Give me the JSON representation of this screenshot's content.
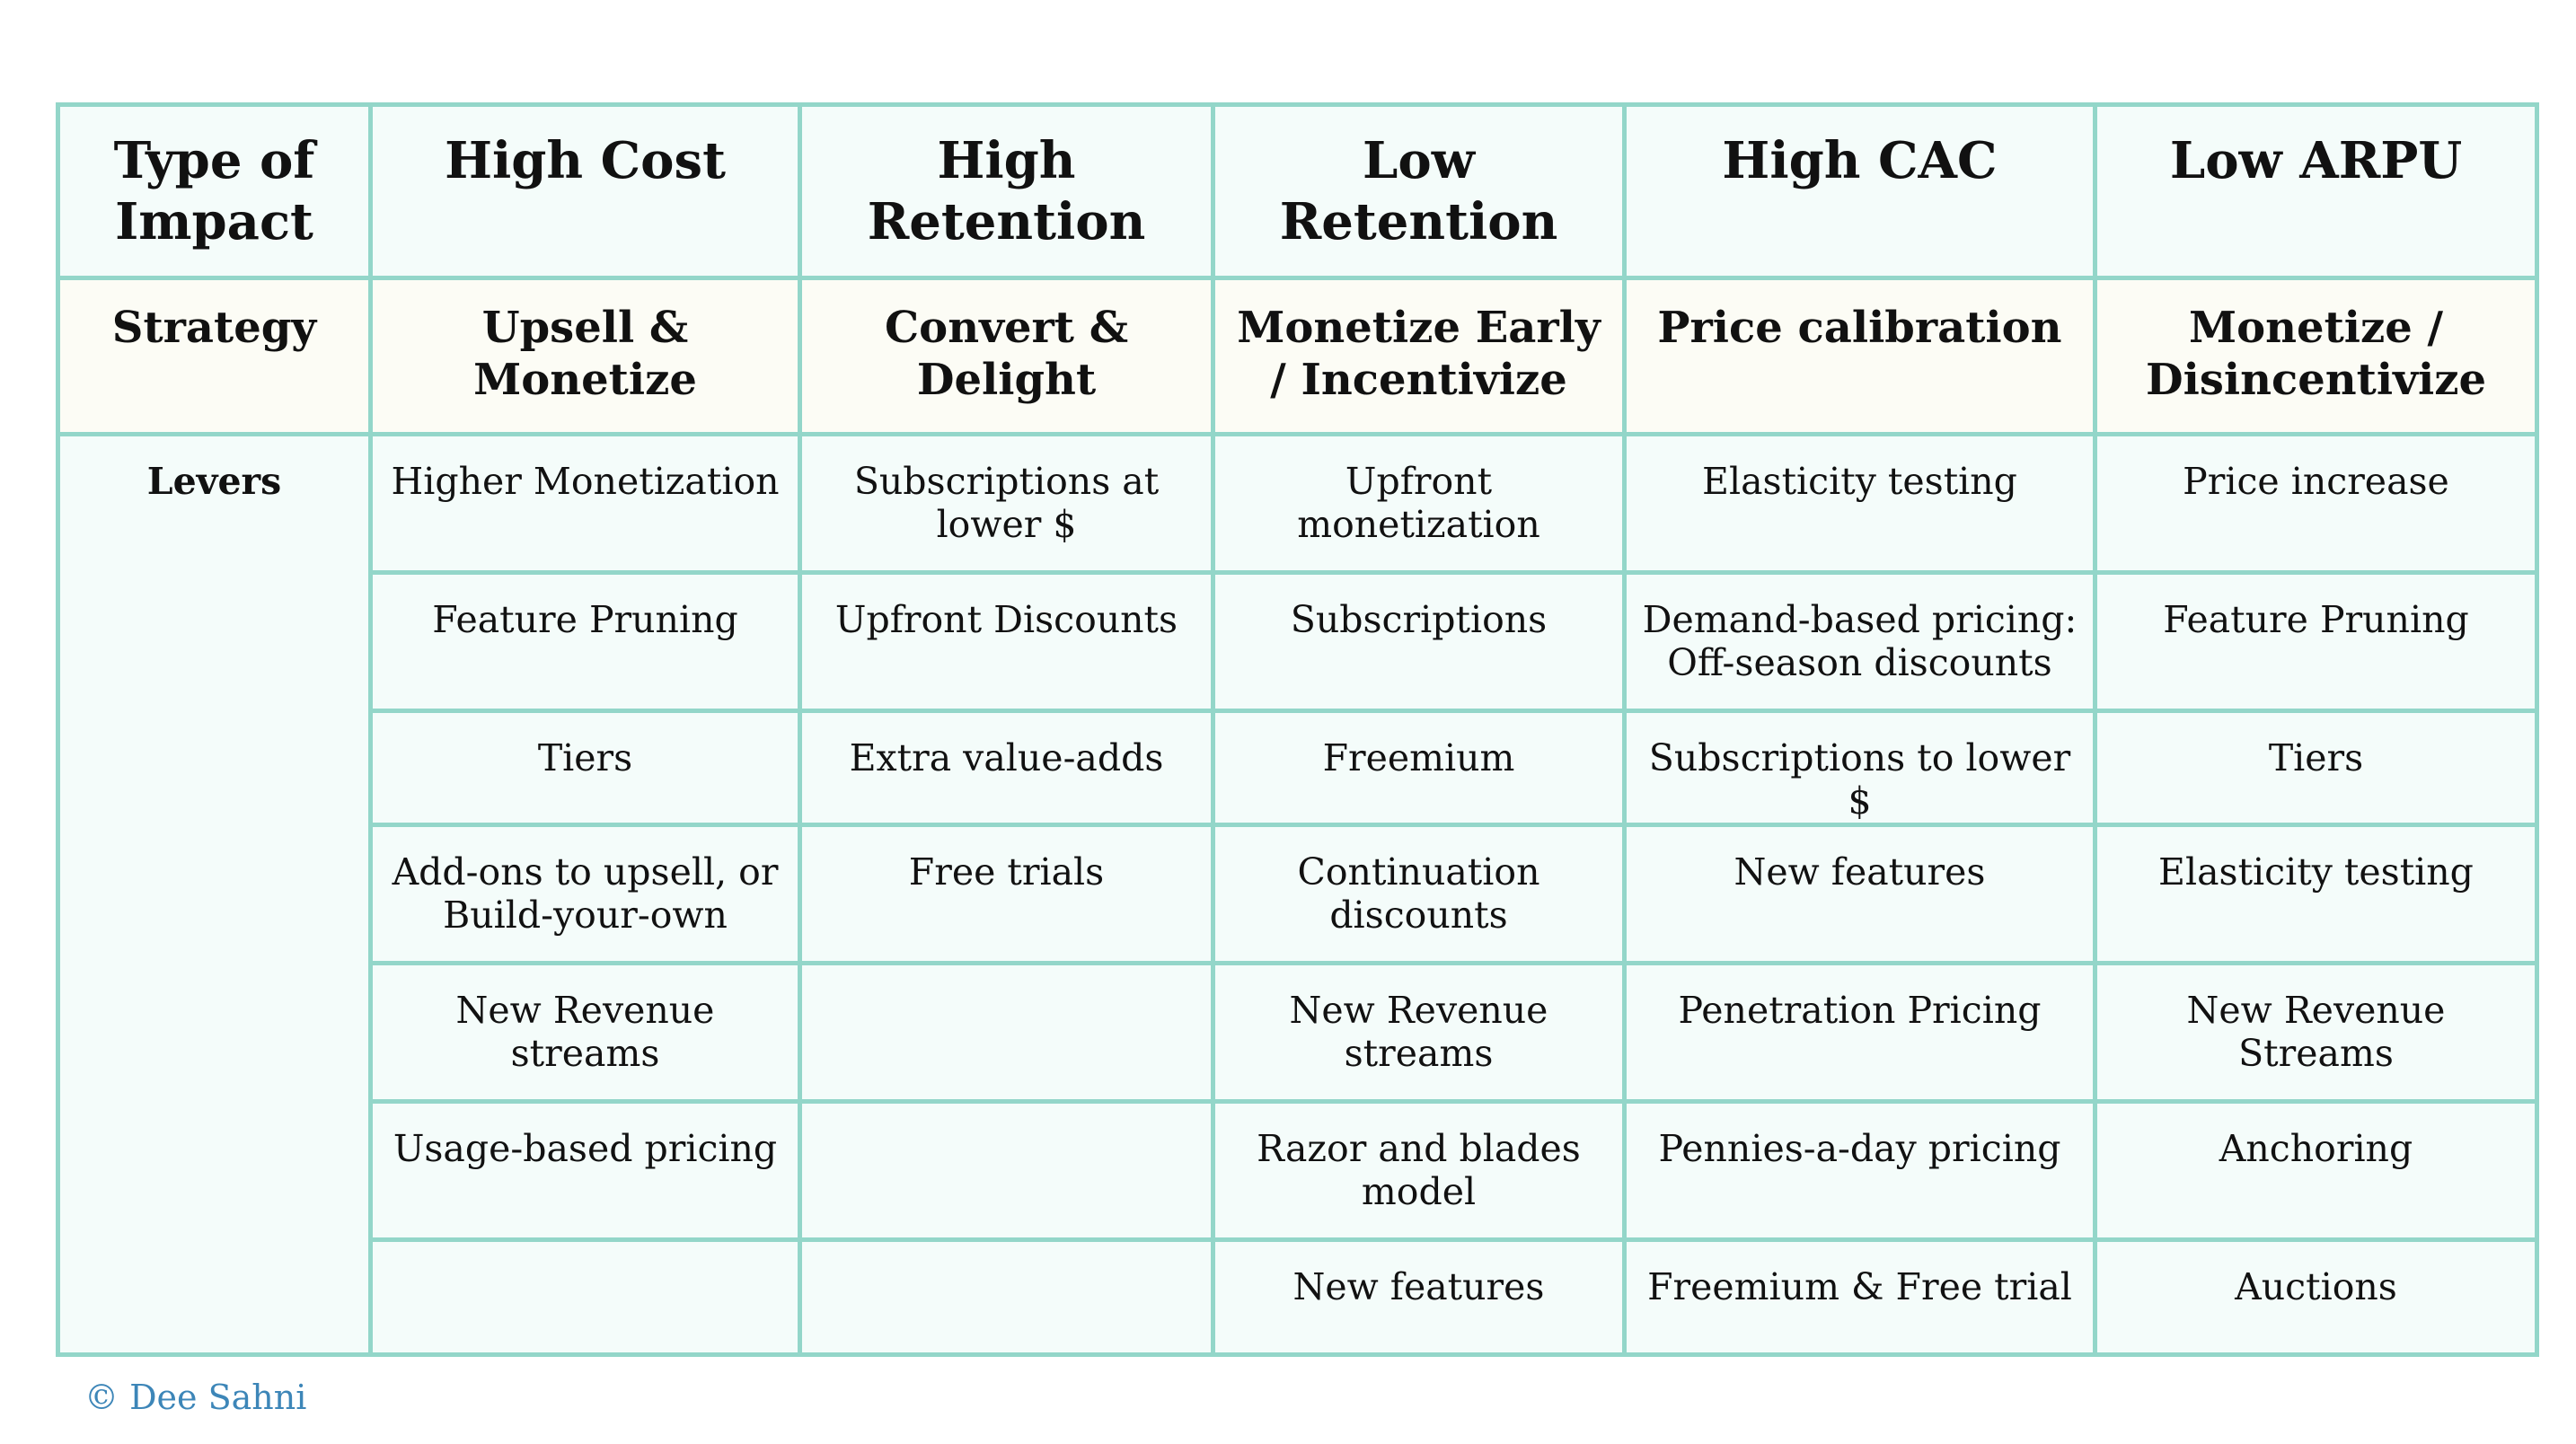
{
  "header": {
    "corner": "Type of Impact",
    "columns": [
      "High Cost",
      "High Retention",
      "Low Retention",
      "High CAC",
      "Low ARPU"
    ]
  },
  "strategy": {
    "label": "Strategy",
    "values": [
      "Upsell & Monetize",
      "Convert & Delight",
      "Monetize Early / Incentivize",
      "Price calibration",
      "Monetize / Disincentivize"
    ]
  },
  "levers": {
    "label": "Levers",
    "rows": [
      [
        "Higher Monetization",
        "Subscriptions at lower $",
        "Upfront monetization",
        "Elasticity testing",
        "Price increase"
      ],
      [
        "Feature Pruning",
        "Upfront Discounts",
        "Subscriptions",
        "Demand-based pricing: Off-season discounts",
        "Feature Pruning"
      ],
      [
        "Tiers",
        "Extra value-adds",
        "Freemium",
        "Subscriptions to lower $",
        "Tiers"
      ],
      [
        "Add-ons to upsell, or Build-your-own",
        "Free trials",
        "Continuation discounts",
        "New features",
        "Elasticity testing"
      ],
      [
        "New Revenue streams",
        "",
        "New Revenue streams",
        "Penetration Pricing",
        "New Revenue Streams"
      ],
      [
        "Usage-based pricing",
        "",
        "Razor and blades model",
        "Pennies-a-day pricing",
        "Anchoring"
      ],
      [
        "",
        "",
        "New features",
        "Freemium & Free trial",
        "Auctions"
      ]
    ]
  },
  "footer": {
    "copyright": "© Dee Sahni"
  },
  "colors": {
    "border": "#93d6c9",
    "header_bg": "#f4fcfa",
    "strategy_bg": "#fcfcf5",
    "copyright_text": "#3d86b8"
  }
}
